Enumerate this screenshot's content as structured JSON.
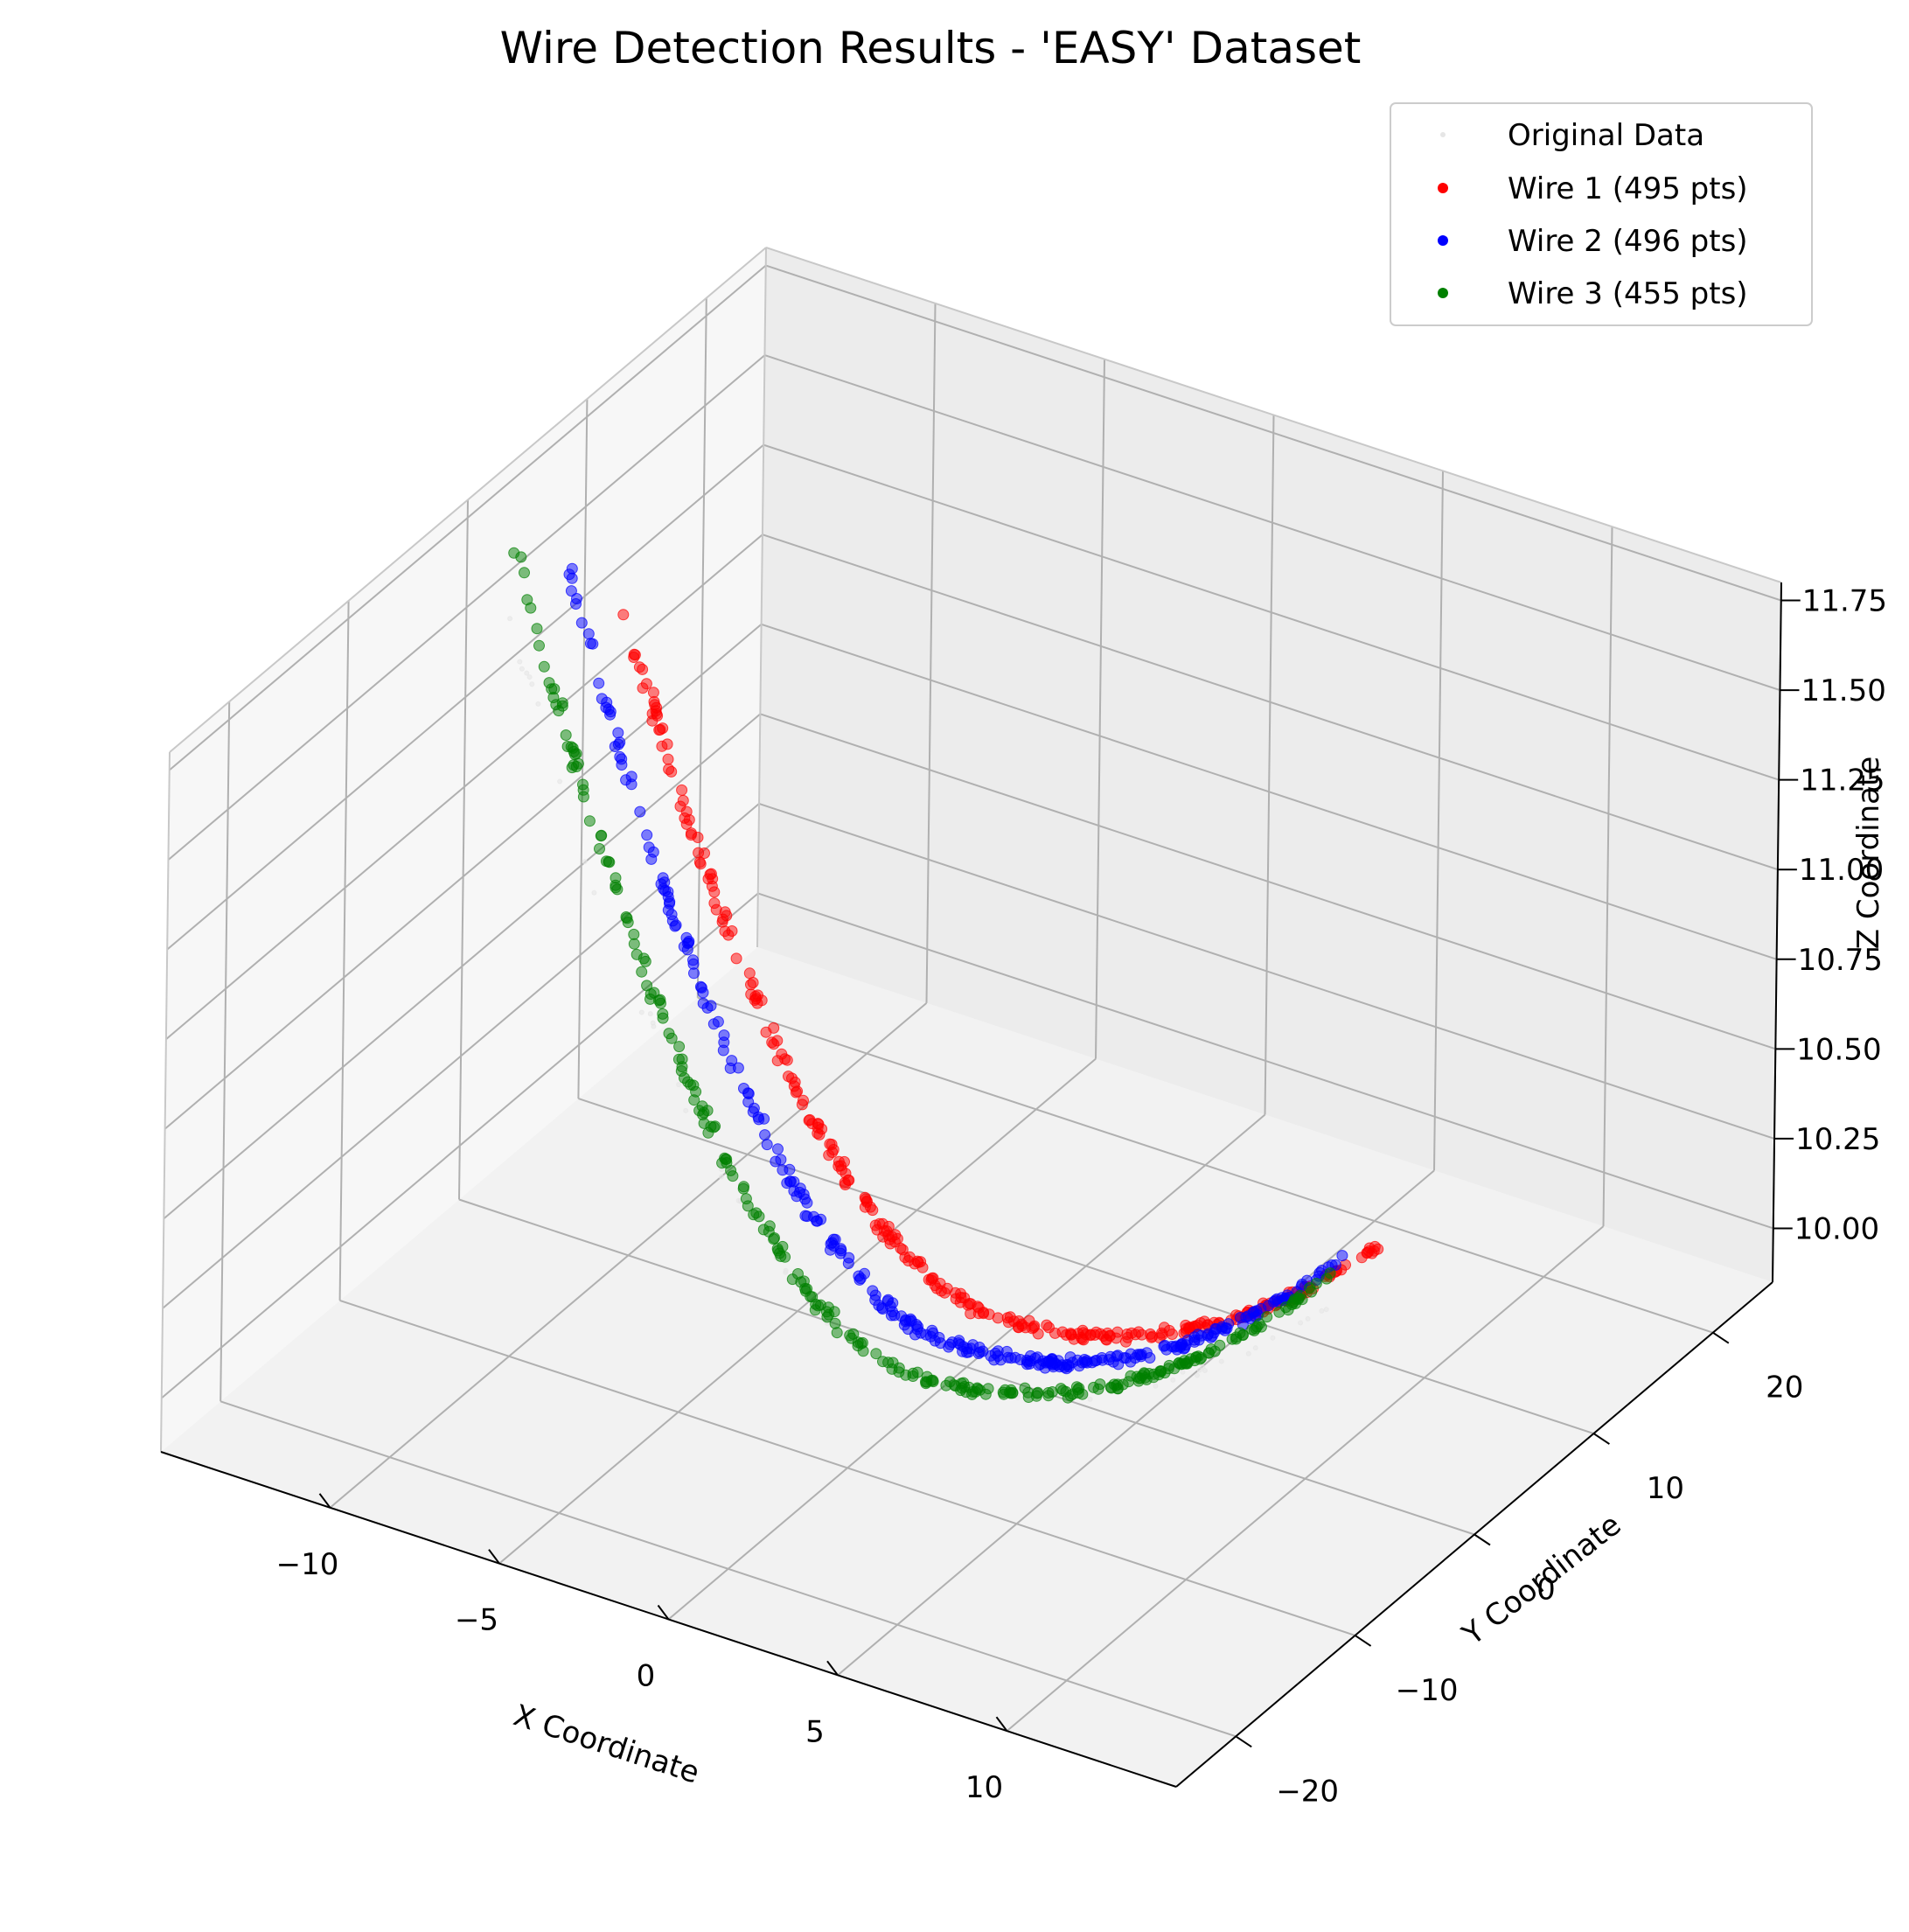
{
  "chart_data": {
    "type": "scatter",
    "projection": "3d",
    "title": "Wire Detection Results - 'EASY' Dataset",
    "xlabel": "X Coordinate",
    "ylabel": "Y Coordinate",
    "zlabel": "Z Coordinate",
    "xlim": [
      -15,
      15
    ],
    "ylim": [
      -25,
      25
    ],
    "zlim": [
      9.85,
      11.8
    ],
    "xticks": [
      "−10",
      "−5",
      "0",
      "5",
      "10"
    ],
    "xtick_values": [
      -10,
      -5,
      0,
      5,
      10
    ],
    "yticks": [
      "−20",
      "−10",
      "0",
      "10",
      "20"
    ],
    "ytick_values": [
      -20,
      -10,
      0,
      10,
      20
    ],
    "zticks": [
      "10.00",
      "10.25",
      "10.50",
      "10.75",
      "11.00",
      "11.25",
      "11.50",
      "11.75"
    ],
    "ztick_values": [
      10.0,
      10.25,
      10.5,
      10.75,
      11.0,
      11.25,
      11.5,
      11.75
    ],
    "grid": true,
    "legend_position": "top-right",
    "series": [
      {
        "name": "Original Data",
        "color": "#e6e6e6",
        "marker_size": "tiny",
        "x_range": [
          -13,
          12
        ],
        "y": -3,
        "z_apex": 9.9,
        "z_edge": 11.72
      },
      {
        "name": "Wire 1 (495 pts)",
        "color": "#ff0000",
        "points": 495,
        "x_range": [
          -11.5,
          11
        ],
        "y": 3,
        "z_apex": 9.9,
        "z_edge": 11.55
      },
      {
        "name": "Wire 2 (496 pts)",
        "color": "#0000ff",
        "points": 496,
        "x_range": [
          -12,
          11
        ],
        "y": 0,
        "z_apex": 9.9,
        "z_edge": 11.7
      },
      {
        "name": "Wire 3 (455 pts)",
        "color": "#008000",
        "points": 455,
        "x_range": [
          -12.5,
          11.5
        ],
        "y": -3,
        "z_apex": 9.9,
        "z_edge": 11.82
      }
    ]
  }
}
